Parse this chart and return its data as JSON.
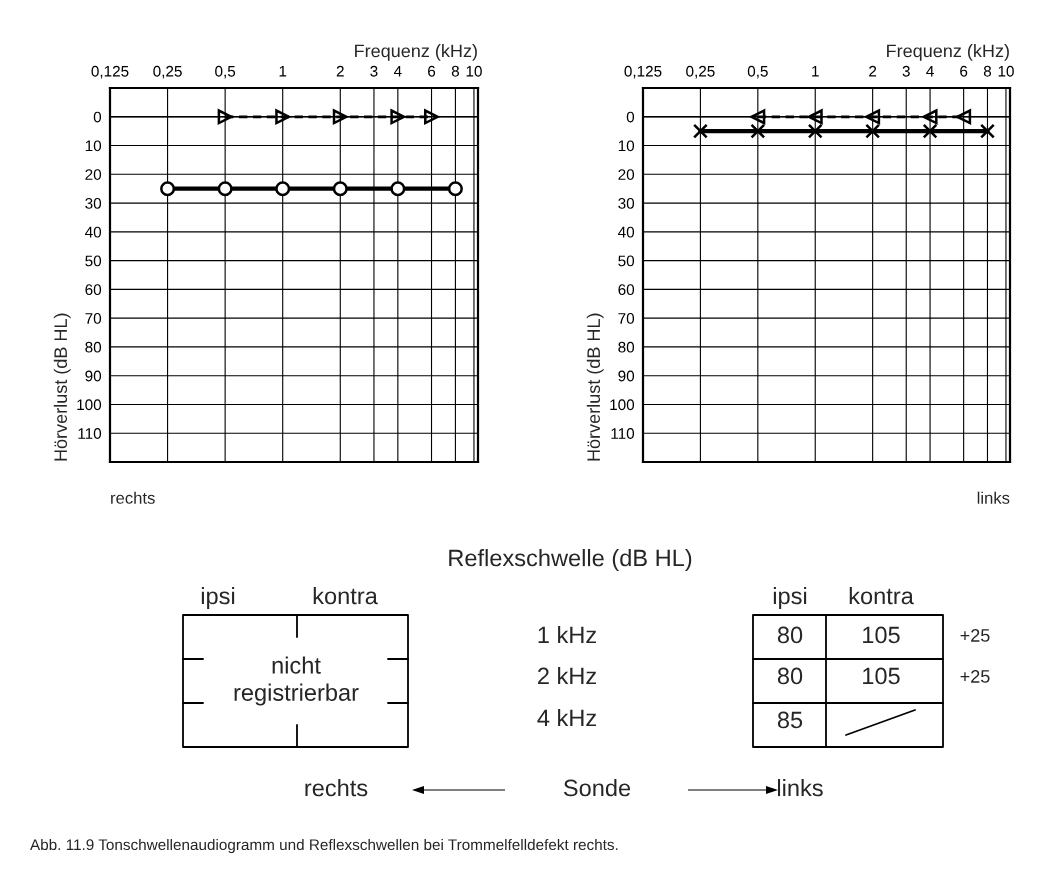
{
  "chart_data": [
    {
      "type": "line",
      "xlabel": "Frequenz (kHz)",
      "ylabel": "Hörverlust (dB HL)",
      "log": "x",
      "xlim": [
        0.125,
        10.5
      ],
      "ylim": [
        120,
        -10
      ],
      "xticks": [
        {
          "value": 0.125,
          "label": "0,125"
        },
        {
          "value": 0.25,
          "label": "0,25"
        },
        {
          "value": 0.5,
          "label": "0,5"
        },
        1,
        2,
        3,
        4,
        6,
        8,
        10
      ],
      "yticks": [
        0,
        10,
        20,
        30,
        40,
        50,
        60,
        70,
        80,
        90,
        100,
        110
      ],
      "grid": true,
      "ref_lines": [
        {
          "axis": "y",
          "value": 0,
          "color": "#000000",
          "line_style": "solid"
        }
      ],
      "series": [
        {
          "x": [
            0.25,
            0.5,
            1,
            2,
            4,
            8
          ],
          "values": [
            25,
            25,
            25,
            25,
            25,
            25
          ],
          "color": "#000000",
          "marker": "circle",
          "line_style": "solid"
        },
        {
          "x": [
            0.5,
            1,
            2,
            4,
            6
          ],
          "values": [
            0,
            0,
            0,
            0,
            0
          ],
          "color": "#000000",
          "marker": "triangle",
          "line_style": "dashed"
        }
      ],
      "annotations": [
        "rechts"
      ]
    },
    {
      "type": "line",
      "xlabel": "Frequenz (kHz)",
      "ylabel": "Hörverlust (dB HL)",
      "log": "x",
      "xlim": [
        0.125,
        10.5
      ],
      "ylim": [
        120,
        -10
      ],
      "xticks": [
        {
          "value": 0.125,
          "label": "0,125"
        },
        {
          "value": 0.25,
          "label": "0,25"
        },
        {
          "value": 0.5,
          "label": "0,5"
        },
        1,
        2,
        3,
        4,
        6,
        8,
        10
      ],
      "yticks": [
        0,
        10,
        20,
        30,
        40,
        50,
        60,
        70,
        80,
        90,
        100,
        110
      ],
      "grid": true,
      "ref_lines": [
        {
          "axis": "y",
          "value": 0,
          "color": "#000000",
          "line_style": "solid"
        }
      ],
      "series": [
        {
          "x": [
            0.25,
            0.5,
            1,
            2,
            4,
            8
          ],
          "values": [
            5,
            5,
            5,
            5,
            5,
            5
          ],
          "color": "#000000",
          "marker": "cross",
          "line_style": "solid"
        },
        {
          "x": [
            0.5,
            1,
            2,
            4,
            6
          ],
          "values": [
            0,
            0,
            0,
            0,
            0
          ],
          "color": "#000000",
          "marker": "triangle",
          "line_style": "dashed"
        }
      ],
      "annotations": [
        "links"
      ]
    },
    {
      "type": "other",
      "title": "Reflexschwelle (dB HL)",
      "annotations": [
        "ipsi",
        "kontra",
        "nicht\nregistrierbar",
        "1 kHz",
        "2 kHz",
        "4 kHz",
        "ipsi",
        "kontra",
        "80",
        "105",
        "+25",
        "80",
        "105",
        "+25",
        "85",
        "rechts",
        "Sonde",
        "links",
        "Abb. 11.9 Tonschwellenaudiogramm und Reflexschwellen bei Trommelfelldefekt rechts."
      ]
    }
  ]
}
